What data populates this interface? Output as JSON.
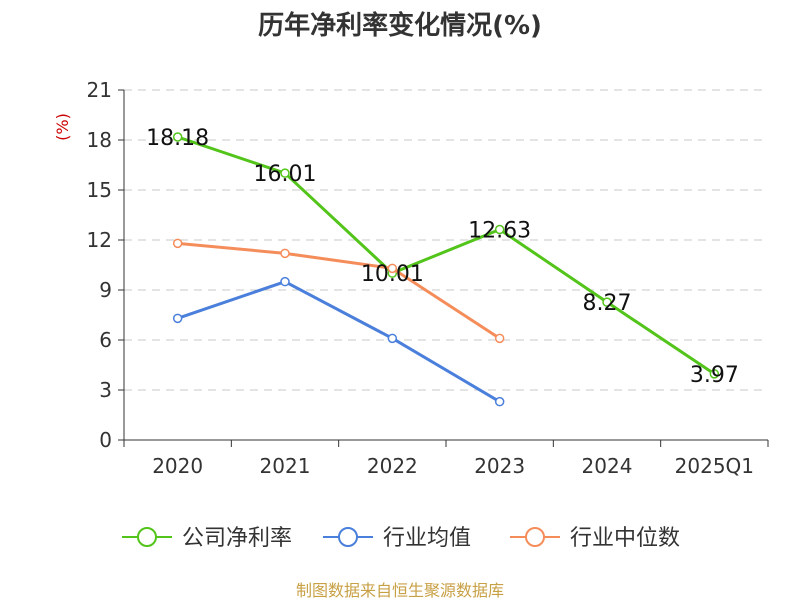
{
  "chart_data": {
    "type": "line",
    "title": "历年净利率变化情况(%)",
    "ylabel": "(%)",
    "xlabel": "",
    "categories": [
      "2020",
      "2021",
      "2022",
      "2023",
      "2024",
      "2025Q1"
    ],
    "ylim": [
      0,
      21
    ],
    "yticks": [
      0,
      3,
      6,
      9,
      12,
      15,
      18,
      21
    ],
    "grid": true,
    "legend_position": "bottom",
    "series": [
      {
        "name": "公司净利率",
        "color": "#52c41a",
        "values": [
          18.18,
          16.01,
          10.01,
          12.63,
          8.27,
          3.97
        ],
        "labels": [
          "18.18",
          "16.01",
          "10.01",
          "12.63",
          "8.27",
          "3.97"
        ]
      },
      {
        "name": "行业均值",
        "color": "#4a7fdb",
        "values": [
          7.3,
          9.5,
          6.1,
          2.3,
          null,
          null
        ]
      },
      {
        "name": "行业中位数",
        "color": "#f58d5a",
        "values": [
          11.8,
          11.2,
          10.3,
          6.1,
          null,
          null
        ]
      }
    ]
  },
  "source": "制图数据来自恒生聚源数据库"
}
